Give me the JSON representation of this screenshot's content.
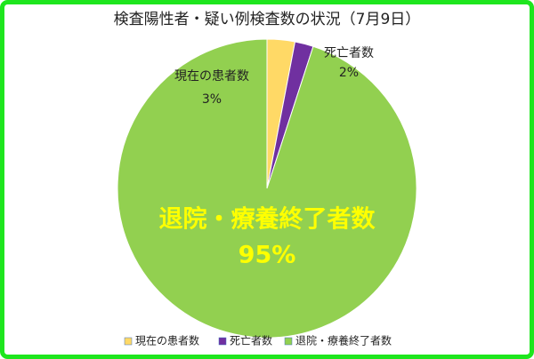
{
  "chart_data": {
    "type": "pie",
    "title": "検査陽性者・疑い例検査数の状況（7月9日）",
    "categories": [
      "現在の患者数",
      "死亡者数",
      "退院・療養終了者数"
    ],
    "values": [
      3,
      2,
      95
    ],
    "value_labels": [
      "3%",
      "2%",
      "95%"
    ],
    "colors": [
      "#ffd966",
      "#7030a0",
      "#92d050"
    ],
    "legend": "bottom"
  }
}
